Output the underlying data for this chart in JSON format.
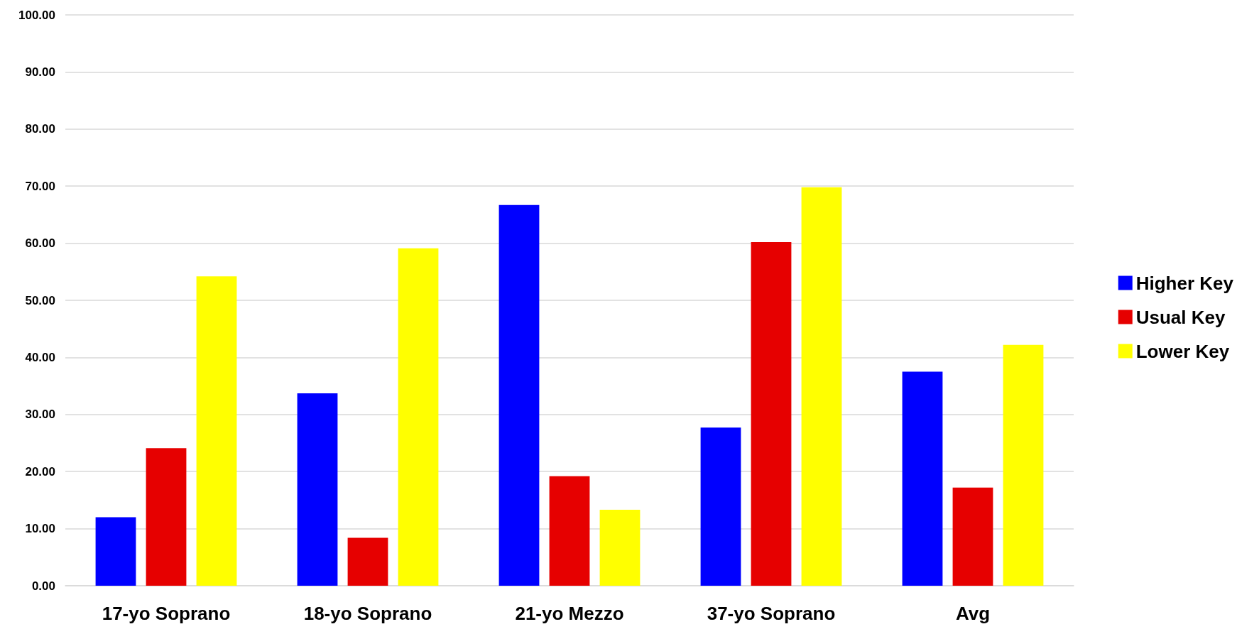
{
  "chart_data": {
    "type": "bar",
    "categories": [
      "17-yo Soprano",
      "18-yo Soprano",
      "21-yo Mezzo",
      "37-yo Soprano",
      "Avg"
    ],
    "series": [
      {
        "name": "Higher Key",
        "color": "#0000ff",
        "values": [
          12.0,
          33.7,
          66.7,
          27.7,
          37.5
        ]
      },
      {
        "name": "Usual Key",
        "color": "#e60000",
        "values": [
          24.1,
          8.4,
          19.2,
          60.2,
          17.2
        ]
      },
      {
        "name": "Lower Key",
        "color": "#ffff00",
        "values": [
          54.2,
          59.1,
          13.3,
          69.8,
          42.2
        ]
      }
    ],
    "ylim": [
      0,
      100
    ],
    "yticks": [
      {
        "value": 0,
        "label": "0.00"
      },
      {
        "value": 10,
        "label": "10.00"
      },
      {
        "value": 20,
        "label": "20.00"
      },
      {
        "value": 30,
        "label": "30.00"
      },
      {
        "value": 40,
        "label": "40.00"
      },
      {
        "value": 50,
        "label": "50.00"
      },
      {
        "value": 60,
        "label": "60.00"
      },
      {
        "value": 70,
        "label": "70.00"
      },
      {
        "value": 80,
        "label": "80.00"
      },
      {
        "value": 90,
        "label": "90.00"
      },
      {
        "value": 100,
        "label": "100.00"
      }
    ],
    "grid": "y",
    "legend": "right"
  }
}
